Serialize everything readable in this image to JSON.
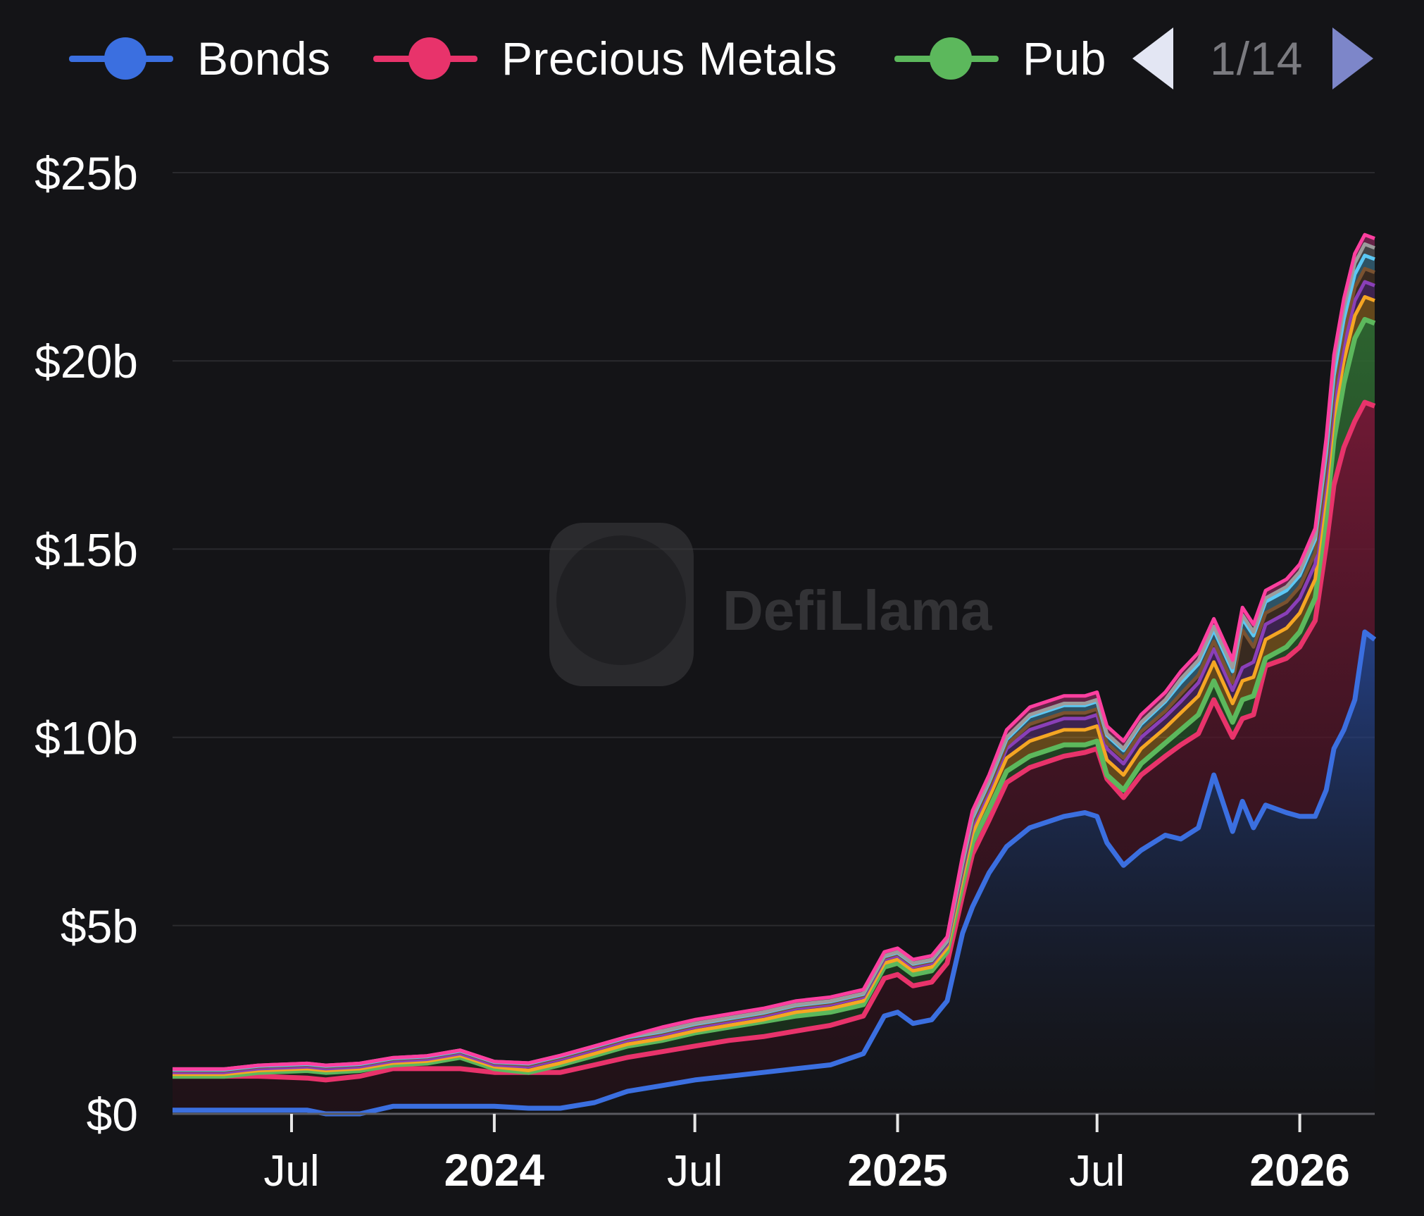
{
  "legend": {
    "items": [
      {
        "label": "Bonds",
        "color": "#3b6fe0"
      },
      {
        "label": "Precious Metals",
        "color": "#e8336b"
      },
      {
        "label": "Pub",
        "color": "#5cb85c"
      }
    ],
    "pager": {
      "text": "1/14",
      "prev_icon": "triangle-left-icon",
      "next_icon": "triangle-right-icon"
    }
  },
  "watermark": {
    "text": "DefiLlama"
  },
  "chart_data": {
    "type": "area",
    "stacked": true,
    "y_ticks": [
      "$0",
      "$5b",
      "$10b",
      "$15b",
      "$20b",
      "$25b"
    ],
    "x_ticks": [
      {
        "label": "Jul",
        "major": false,
        "date": "2023-07-01"
      },
      {
        "label": "2024",
        "major": true,
        "date": "2024-01-01"
      },
      {
        "label": "Jul",
        "major": false,
        "date": "2024-07-01"
      },
      {
        "label": "2025",
        "major": true,
        "date": "2025-01-01"
      },
      {
        "label": "Jul",
        "major": false,
        "date": "2025-07-01"
      },
      {
        "label": "2026",
        "major": true,
        "date": "2026-01-01"
      }
    ],
    "ylim": [
      0,
      25
    ],
    "y_unit": "billions USD",
    "xlim": [
      "2023-03-15",
      "2026-03-10"
    ],
    "grid": true,
    "legend_position": "top",
    "x": [
      "2023-03-15",
      "2023-05-01",
      "2023-06-01",
      "2023-07-15",
      "2023-08-01",
      "2023-09-01",
      "2023-10-01",
      "2023-11-01",
      "2023-12-01",
      "2024-01-01",
      "2024-02-01",
      "2024-03-01",
      "2024-04-01",
      "2024-05-01",
      "2024-06-01",
      "2024-07-01",
      "2024-08-01",
      "2024-09-01",
      "2024-10-01",
      "2024-11-01",
      "2024-12-01",
      "2024-12-20",
      "2025-01-01",
      "2025-01-15",
      "2025-02-01",
      "2025-02-15",
      "2025-03-01",
      "2025-03-10",
      "2025-03-25",
      "2025-04-10",
      "2025-05-01",
      "2025-06-01",
      "2025-06-20",
      "2025-07-01",
      "2025-07-10",
      "2025-07-25",
      "2025-08-10",
      "2025-09-01",
      "2025-09-15",
      "2025-10-01",
      "2025-10-15",
      "2025-11-01",
      "2025-11-10",
      "2025-11-20",
      "2025-12-01",
      "2025-12-20",
      "2026-01-01",
      "2026-01-15",
      "2026-01-25",
      "2026-02-01",
      "2026-02-10",
      "2026-02-20",
      "2026-03-01",
      "2026-03-10"
    ],
    "series": [
      {
        "name": "Bonds",
        "color": "#3b6fe0",
        "values": [
          0.1,
          0.1,
          0.1,
          0.1,
          0.0,
          0.0,
          0.2,
          0.2,
          0.2,
          0.2,
          0.15,
          0.15,
          0.3,
          0.6,
          0.75,
          0.9,
          1.0,
          1.1,
          1.2,
          1.3,
          1.6,
          2.6,
          2.7,
          2.4,
          2.5,
          3.0,
          4.8,
          5.5,
          6.4,
          7.1,
          7.6,
          7.9,
          8.0,
          7.9,
          7.2,
          6.6,
          7.0,
          7.4,
          7.3,
          7.6,
          9.0,
          7.5,
          8.3,
          7.6,
          8.2,
          8.0,
          7.9,
          7.9,
          8.6,
          9.7,
          10.2,
          11.0,
          12.8,
          12.6
        ]
      },
      {
        "name": "Precious Metals",
        "color": "#e8336b",
        "values": [
          0.9,
          0.9,
          0.9,
          0.85,
          0.9,
          1.0,
          1.0,
          1.0,
          1.0,
          0.9,
          0.95,
          0.95,
          1.0,
          0.9,
          0.9,
          0.9,
          0.95,
          0.95,
          1.0,
          1.05,
          1.0,
          1.0,
          1.0,
          1.0,
          1.0,
          1.0,
          1.0,
          1.4,
          1.4,
          1.7,
          1.6,
          1.6,
          1.6,
          1.8,
          1.7,
          1.8,
          2.0,
          2.1,
          2.5,
          2.5,
          2.0,
          2.5,
          2.2,
          3.0,
          3.7,
          4.1,
          4.5,
          5.2,
          6.5,
          7.0,
          7.5,
          7.4,
          6.1,
          6.2
        ]
      },
      {
        "name": "Pub",
        "color": "#5cb85c",
        "values": [
          0.0,
          0.0,
          0.1,
          0.2,
          0.2,
          0.15,
          0.1,
          0.15,
          0.3,
          0.1,
          0.0,
          0.2,
          0.25,
          0.3,
          0.3,
          0.35,
          0.35,
          0.4,
          0.4,
          0.35,
          0.3,
          0.3,
          0.3,
          0.3,
          0.3,
          0.3,
          0.3,
          0.3,
          0.3,
          0.3,
          0.3,
          0.3,
          0.2,
          0.2,
          0.1,
          0.2,
          0.3,
          0.35,
          0.4,
          0.5,
          0.5,
          0.4,
          0.5,
          0.5,
          0.2,
          0.3,
          0.4,
          0.6,
          0.8,
          1.2,
          1.7,
          2.2,
          2.2,
          2.2
        ]
      },
      {
        "color": "#f5a623",
        "values": [
          0.05,
          0.05,
          0.05,
          0.05,
          0.05,
          0.05,
          0.05,
          0.05,
          0.05,
          0.05,
          0.05,
          0.05,
          0.05,
          0.05,
          0.05,
          0.05,
          0.05,
          0.05,
          0.1,
          0.1,
          0.1,
          0.1,
          0.1,
          0.1,
          0.1,
          0.1,
          0.2,
          0.25,
          0.3,
          0.35,
          0.4,
          0.4,
          0.4,
          0.4,
          0.4,
          0.4,
          0.4,
          0.4,
          0.45,
          0.5,
          0.5,
          0.5,
          0.5,
          0.5,
          0.5,
          0.5,
          0.5,
          0.5,
          0.6,
          0.6,
          0.6,
          0.6,
          0.6,
          0.6
        ]
      },
      {
        "color": "#8a3fb8",
        "values": [
          0.05,
          0.05,
          0.05,
          0.05,
          0.05,
          0.05,
          0.05,
          0.05,
          0.05,
          0.05,
          0.1,
          0.1,
          0.1,
          0.1,
          0.1,
          0.1,
          0.1,
          0.1,
          0.1,
          0.1,
          0.1,
          0.1,
          0.1,
          0.1,
          0.1,
          0.1,
          0.15,
          0.2,
          0.2,
          0.25,
          0.3,
          0.3,
          0.3,
          0.3,
          0.3,
          0.3,
          0.3,
          0.3,
          0.3,
          0.35,
          0.35,
          0.35,
          0.35,
          0.4,
          0.4,
          0.4,
          0.4,
          0.4,
          0.4,
          0.4,
          0.4,
          0.4,
          0.4,
          0.4
        ]
      },
      {
        "color": "#7a5230",
        "values": [
          0.05,
          0.05,
          0.05,
          0.05,
          0.05,
          0.05,
          0.05,
          0.05,
          0.05,
          0.05,
          0.05,
          0.05,
          0.05,
          0.05,
          0.05,
          0.05,
          0.05,
          0.05,
          0.05,
          0.05,
          0.05,
          0.05,
          0.05,
          0.05,
          0.05,
          0.05,
          0.1,
          0.1,
          0.1,
          0.1,
          0.15,
          0.15,
          0.15,
          0.15,
          0.15,
          0.15,
          0.15,
          0.15,
          0.2,
          0.2,
          0.2,
          0.2,
          1.0,
          0.4,
          0.3,
          0.3,
          0.3,
          0.3,
          0.3,
          0.35,
          0.35,
          0.35,
          0.35,
          0.35
        ]
      },
      {
        "color": "#5bc8f5",
        "values": [
          0.02,
          0.02,
          0.02,
          0.02,
          0.02,
          0.02,
          0.02,
          0.02,
          0.02,
          0.02,
          0.03,
          0.03,
          0.03,
          0.03,
          0.03,
          0.03,
          0.03,
          0.03,
          0.03,
          0.03,
          0.03,
          0.03,
          0.03,
          0.03,
          0.03,
          0.03,
          0.1,
          0.1,
          0.1,
          0.15,
          0.2,
          0.2,
          0.2,
          0.2,
          0.2,
          0.2,
          0.2,
          0.25,
          0.3,
          0.3,
          0.3,
          0.3,
          0.3,
          0.3,
          0.3,
          0.3,
          0.3,
          0.35,
          0.35,
          0.35,
          0.35,
          0.35,
          0.35,
          0.35
        ]
      },
      {
        "color": "#9c9c9c",
        "values": [
          0.02,
          0.02,
          0.02,
          0.02,
          0.02,
          0.02,
          0.02,
          0.02,
          0.02,
          0.02,
          0.02,
          0.02,
          0.02,
          0.02,
          0.02,
          0.02,
          0.02,
          0.02,
          0.02,
          0.02,
          0.02,
          0.02,
          0.02,
          0.02,
          0.02,
          0.02,
          0.05,
          0.05,
          0.05,
          0.05,
          0.05,
          0.05,
          0.05,
          0.05,
          0.05,
          0.05,
          0.05,
          0.05,
          0.1,
          0.1,
          0.1,
          0.1,
          0.1,
          0.1,
          0.1,
          0.1,
          0.1,
          0.1,
          0.2,
          0.3,
          0.3,
          0.3,
          0.3,
          0.3
        ]
      },
      {
        "color": "#ff3fa0",
        "values": [
          0.0,
          0.0,
          0.0,
          0.0,
          0.0,
          0.0,
          0.0,
          0.0,
          0.0,
          0.0,
          0.0,
          0.0,
          0.0,
          0.0,
          0.1,
          0.1,
          0.1,
          0.1,
          0.1,
          0.1,
          0.1,
          0.1,
          0.1,
          0.1,
          0.1,
          0.1,
          0.15,
          0.15,
          0.15,
          0.2,
          0.2,
          0.2,
          0.2,
          0.2,
          0.2,
          0.2,
          0.2,
          0.2,
          0.2,
          0.2,
          0.2,
          0.2,
          0.2,
          0.2,
          0.2,
          0.2,
          0.2,
          0.2,
          0.2,
          0.25,
          0.25,
          0.25,
          0.25,
          0.25
        ]
      }
    ]
  }
}
